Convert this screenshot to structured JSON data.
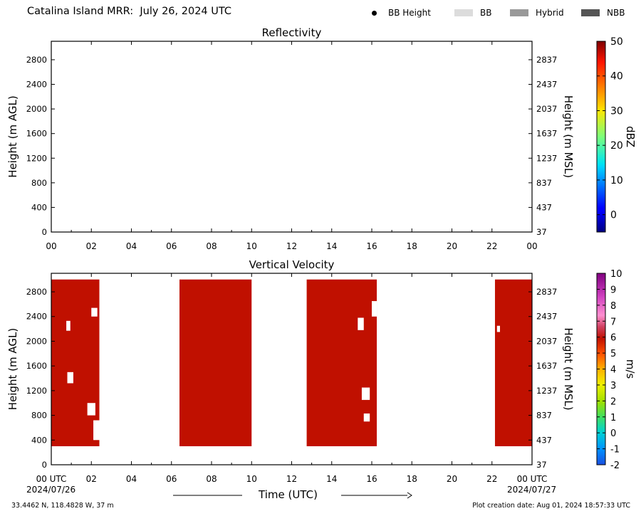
{
  "page": {
    "title": "Catalina Island MRR:  July 26, 2024 UTC",
    "legend": [
      {
        "label": "BB Height",
        "marker": "dot",
        "color": "#000000"
      },
      {
        "label": "BB",
        "marker": "swatch",
        "color": "#dcdcdc"
      },
      {
        "label": "Hybrid",
        "marker": "swatch",
        "color": "#999999"
      },
      {
        "label": "NBB",
        "marker": "swatch",
        "color": "#555555"
      }
    ],
    "footer_left": "33.4462 N, 118.4828 W, 37 m",
    "footer_right": "Plot creation date: Aug 01, 2024 18:57:33 UTC",
    "xlabel": "Time (UTC)",
    "start_date": "2024/07/26",
    "end_date": "2024/07/27"
  },
  "chart_data": [
    {
      "type": "heatmap",
      "title": "Reflectivity",
      "xlabel": "",
      "ylabel": "Height (m AGL)",
      "ylabel_right": "Height (m MSL)",
      "xlim": [
        0,
        24
      ],
      "ylim": [
        0,
        3100
      ],
      "x_ticks": [
        "00",
        "02",
        "04",
        "06",
        "08",
        "10",
        "12",
        "14",
        "16",
        "18",
        "20",
        "22",
        "00"
      ],
      "y_ticks": [
        0,
        400,
        800,
        1200,
        1600,
        2000,
        2400,
        2800
      ],
      "y_ticks_right": [
        37,
        437,
        837,
        1237,
        1637,
        2037,
        2437,
        2837
      ],
      "colorbar": {
        "label": "dBZ",
        "min": -5,
        "max": 50,
        "ticks": [
          0,
          10,
          20,
          30,
          40,
          50
        ]
      },
      "regions": []
    },
    {
      "type": "heatmap",
      "title": "Vertical Velocity",
      "xlabel": "Time (UTC)",
      "ylabel": "Height (m AGL)",
      "ylabel_right": "Height (m MSL)",
      "xlim": [
        0,
        24
      ],
      "ylim": [
        0,
        3100
      ],
      "x_ticks": [
        "00 UTC",
        "02",
        "04",
        "06",
        "08",
        "10",
        "12",
        "14",
        "16",
        "18",
        "20",
        "22",
        "00 UTC"
      ],
      "y_ticks": [
        0,
        400,
        800,
        1200,
        1600,
        2000,
        2400,
        2800
      ],
      "y_ticks_right": [
        37,
        437,
        837,
        1237,
        1637,
        2037,
        2437,
        2837
      ],
      "colorbar": {
        "label": "m/s",
        "min": -2,
        "max": 10,
        "ticks": [
          -2,
          -1,
          0,
          1,
          2,
          3,
          4,
          5,
          6,
          7,
          8,
          9,
          10
        ]
      },
      "regions": [
        {
          "t_start": 0.0,
          "t_end": 2.4,
          "h_bottom": 300,
          "h_top": 3000,
          "value": 6,
          "color": "#c01000"
        },
        {
          "t_start": 6.4,
          "t_end": 10.0,
          "h_bottom": 300,
          "h_top": 3000,
          "value": 6,
          "color": "#c01000"
        },
        {
          "t_start": 12.75,
          "t_end": 16.25,
          "h_bottom": 300,
          "h_top": 3000,
          "value": 6,
          "color": "#c01000"
        },
        {
          "t_start": 22.15,
          "t_end": 24.0,
          "h_bottom": 300,
          "h_top": 3000,
          "value": 6,
          "color": "#c01000"
        }
      ],
      "gaps": [
        {
          "t_start": 0.8,
          "t_end": 1.1,
          "h_bottom": 1320,
          "h_top": 1500
        },
        {
          "t_start": 0.75,
          "t_end": 0.95,
          "h_bottom": 2170,
          "h_top": 2330
        },
        {
          "t_start": 2.0,
          "t_end": 2.3,
          "h_bottom": 2400,
          "h_top": 2540
        },
        {
          "t_start": 1.8,
          "t_end": 2.2,
          "h_bottom": 800,
          "h_top": 1000
        },
        {
          "t_start": 2.1,
          "t_end": 2.4,
          "h_bottom": 400,
          "h_top": 720
        },
        {
          "t_start": 15.3,
          "t_end": 15.6,
          "h_bottom": 2180,
          "h_top": 2380
        },
        {
          "t_start": 15.5,
          "t_end": 15.9,
          "h_bottom": 1050,
          "h_top": 1250
        },
        {
          "t_start": 15.6,
          "t_end": 15.9,
          "h_bottom": 700,
          "h_top": 830
        },
        {
          "t_start": 16.0,
          "t_end": 16.25,
          "h_bottom": 2400,
          "h_top": 2650
        },
        {
          "t_start": 22.25,
          "t_end": 22.4,
          "h_bottom": 2150,
          "h_top": 2250
        }
      ]
    }
  ]
}
